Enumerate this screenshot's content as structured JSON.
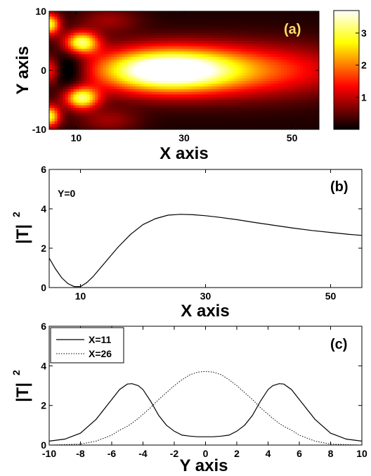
{
  "chart_data": [
    {
      "type": "heatmap",
      "panel_label": "(a)",
      "xlabel": "X axis",
      "ylabel": "Y axis",
      "xlim": [
        5,
        55
      ],
      "ylim": [
        -10,
        10
      ],
      "x_ticks": [
        10,
        30,
        50
      ],
      "y_ticks": [
        -10,
        0,
        10
      ],
      "colorbar": {
        "range": [
          0,
          3.7
        ],
        "ticks": [
          1,
          2,
          3
        ],
        "colormap": "hot"
      },
      "features": [
        {
          "x": 26,
          "y": 0,
          "value": 3.7,
          "desc": "main lobe"
        },
        {
          "x": 11,
          "y": 4.7,
          "value": 3.1
        },
        {
          "x": 11,
          "y": -4.7,
          "value": 3.1
        },
        {
          "x": 5.5,
          "y": 7.5,
          "value": 3.0
        },
        {
          "x": 5.5,
          "y": -7.5,
          "value": 3.0
        },
        {
          "x": 9,
          "y": 0,
          "value": 0.05
        }
      ]
    },
    {
      "type": "line",
      "panel_label": "(b)",
      "annotation": "Y=0",
      "xlabel": "X axis",
      "ylabel": "|T|",
      "ylabel_superscript": "2",
      "xlim": [
        5,
        55
      ],
      "ylim": [
        0,
        6
      ],
      "x_ticks": [
        10,
        30,
        50
      ],
      "y_ticks": [
        0,
        2,
        4,
        6
      ],
      "x": [
        5,
        6,
        7,
        8,
        9,
        10,
        11,
        12,
        14,
        16,
        18,
        20,
        22,
        24,
        26,
        28,
        30,
        32,
        35,
        38,
        41,
        44,
        47,
        50,
        53,
        55
      ],
      "y": [
        1.5,
        0.95,
        0.5,
        0.2,
        0.05,
        0.05,
        0.25,
        0.55,
        1.3,
        2.05,
        2.7,
        3.2,
        3.5,
        3.68,
        3.72,
        3.7,
        3.65,
        3.58,
        3.45,
        3.3,
        3.16,
        3.02,
        2.9,
        2.8,
        2.7,
        2.65
      ]
    },
    {
      "type": "line",
      "panel_label": "(c)",
      "xlabel": "Y axis",
      "ylabel": "|T|",
      "ylabel_superscript": "2",
      "xlim": [
        -10,
        10
      ],
      "ylim": [
        0,
        6
      ],
      "x_ticks": [
        -10,
        -8,
        -6,
        -4,
        -2,
        0,
        2,
        4,
        6,
        8,
        10
      ],
      "y_ticks": [
        0,
        2,
        4,
        6
      ],
      "legend": "top-left",
      "x": [
        -10,
        -9,
        -8,
        -7,
        -6,
        -5.5,
        -5,
        -4.7,
        -4.3,
        -4,
        -3.5,
        -3,
        -2.5,
        -2,
        -1.5,
        -1,
        -0.5,
        0,
        0.5,
        1,
        1.5,
        2,
        2.5,
        3,
        3.5,
        4,
        4.3,
        4.7,
        5,
        5.5,
        6,
        7,
        8,
        9,
        10
      ],
      "series": [
        {
          "name": "X=11",
          "style": "solid",
          "y": [
            0.2,
            0.3,
            0.6,
            1.3,
            2.3,
            2.8,
            3.08,
            3.1,
            3.0,
            2.8,
            2.2,
            1.5,
            1.0,
            0.7,
            0.5,
            0.45,
            0.42,
            0.42,
            0.42,
            0.45,
            0.5,
            0.7,
            1.0,
            1.5,
            2.2,
            2.8,
            3.0,
            3.1,
            3.08,
            2.8,
            2.3,
            1.3,
            0.6,
            0.3,
            0.2
          ]
        },
        {
          "name": "X=26",
          "style": "dotted",
          "y": [
            0.0,
            0.02,
            0.05,
            0.2,
            0.5,
            0.75,
            0.95,
            1.1,
            1.35,
            1.55,
            1.9,
            2.3,
            2.65,
            3.0,
            3.3,
            3.55,
            3.68,
            3.72,
            3.68,
            3.55,
            3.3,
            3.0,
            2.65,
            2.3,
            1.9,
            1.55,
            1.35,
            1.1,
            0.95,
            0.75,
            0.5,
            0.2,
            0.05,
            0.02,
            0.0
          ]
        }
      ]
    }
  ]
}
